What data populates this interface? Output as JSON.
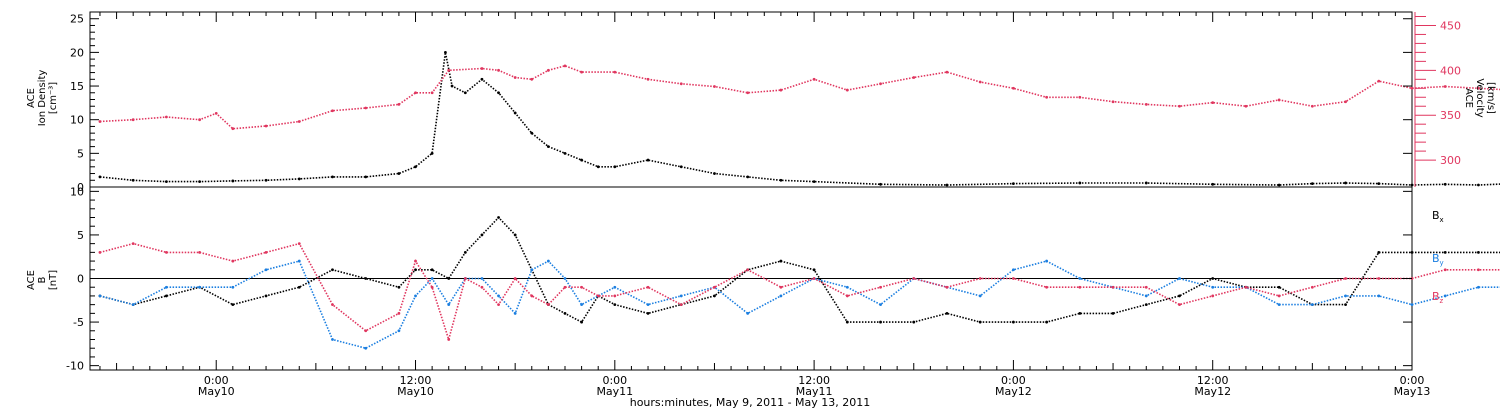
{
  "chart_data": [
    {
      "type": "scatter",
      "panel": "top",
      "left_axis_label": [
        "ACE",
        "Ion Density",
        "[cm⁻³]"
      ],
      "right_axis_label": [
        "ACE",
        "Velocity",
        "[km/s]"
      ],
      "left_ylim": [
        0,
        26
      ],
      "right_ylim": [
        270,
        465
      ],
      "left_ticks": [
        "0",
        "5",
        "10",
        "15",
        "20",
        "25"
      ],
      "right_ticks": [
        "300",
        "350",
        "400",
        "450"
      ],
      "grid": false,
      "colors": {
        "density": "#000000",
        "velocity": "#e0365f"
      },
      "series": [
        {
          "axis": "left",
          "hours": [
            -7,
            -5,
            -3,
            -1,
            1,
            3,
            5,
            7,
            9,
            11,
            12,
            13,
            13.8,
            14.2,
            15,
            16,
            17,
            18,
            19,
            20,
            21,
            22,
            23,
            24,
            26,
            28,
            30,
            32,
            34,
            36,
            40,
            44,
            48,
            52,
            56,
            60,
            64,
            66,
            68,
            70,
            72,
            74,
            76,
            78,
            80,
            82
          ],
          "values": [
            1.5,
            1,
            0.8,
            0.8,
            0.9,
            1,
            1.2,
            1.5,
            1.5,
            2,
            3,
            5,
            20,
            15,
            14,
            16,
            14,
            11,
            8,
            6,
            5,
            4,
            3,
            3,
            4,
            3,
            2,
            1.5,
            1,
            0.8,
            0.4,
            0.3,
            0.5,
            0.6,
            0.6,
            0.4,
            0.3,
            0.5,
            0.6,
            0.5,
            0.3,
            0.4,
            0.3,
            0.5,
            0.5,
            1
          ]
        },
        {
          "axis": "right",
          "hours": [
            -7,
            -5,
            -3,
            -1,
            0,
            1,
            3,
            5,
            7,
            9,
            11,
            12,
            13,
            14,
            16,
            17,
            18,
            19,
            20,
            21,
            22,
            24,
            26,
            28,
            30,
            32,
            34,
            36,
            38,
            40,
            42,
            44,
            46,
            48,
            50,
            52,
            54,
            56,
            58,
            60,
            62,
            64,
            66,
            68,
            70,
            72,
            74,
            76,
            78,
            80,
            82
          ],
          "values": [
            343,
            345,
            348,
            345,
            352,
            335,
            338,
            343,
            355,
            358,
            362,
            375,
            375,
            400,
            402,
            400,
            392,
            390,
            400,
            405,
            398,
            398,
            390,
            385,
            382,
            375,
            378,
            390,
            378,
            385,
            392,
            398,
            387,
            380,
            370,
            370,
            365,
            362,
            360,
            364,
            360,
            367,
            360,
            365,
            388,
            380,
            382,
            380,
            378,
            355,
            350
          ]
        }
      ]
    },
    {
      "type": "scatter",
      "panel": "bottom",
      "left_axis_label": [
        "ACE",
        "B",
        "[nT]"
      ],
      "ylim": [
        -10.5,
        10.5
      ],
      "ticks": [
        "-10",
        "-5",
        "0",
        "5",
        "10"
      ],
      "grid": false,
      "legend": [
        "Bx",
        "By",
        "Bz"
      ],
      "series": [
        {
          "name": "Bx",
          "color": "#000000",
          "hours": [
            -7,
            -5,
            -3,
            -1,
            1,
            3,
            5,
            7,
            9,
            11,
            12,
            13,
            14,
            15,
            16,
            17,
            18,
            19,
            20,
            21,
            22,
            23,
            24,
            26,
            28,
            30,
            32,
            34,
            36,
            38,
            40,
            42,
            44,
            46,
            48,
            50,
            52,
            54,
            56,
            58,
            60,
            62,
            64,
            66,
            68,
            70,
            72,
            74,
            76,
            78,
            80,
            82
          ],
          "values": [
            -2,
            -3,
            -2,
            -1,
            -3,
            -2,
            -1,
            1,
            0,
            -1,
            1,
            1,
            0,
            3,
            5,
            7,
            5,
            1,
            -3,
            -4,
            -5,
            -2,
            -3,
            -4,
            -3,
            -2,
            1,
            2,
            1,
            -5,
            -5,
            -5,
            -4,
            -5,
            -5,
            -5,
            -4,
            -4,
            -3,
            -2,
            0,
            -1,
            -1,
            -3,
            -3,
            3,
            3,
            3,
            3,
            3,
            2,
            0
          ]
        },
        {
          "name": "By",
          "color": "#1a7ee0",
          "hours": [
            -7,
            -5,
            -3,
            -1,
            1,
            3,
            5,
            7,
            9,
            11,
            12,
            13,
            14,
            15,
            16,
            17,
            18,
            19,
            20,
            21,
            22,
            23,
            24,
            26,
            28,
            30,
            32,
            34,
            36,
            38,
            40,
            42,
            44,
            46,
            48,
            50,
            52,
            54,
            56,
            58,
            60,
            62,
            64,
            66,
            68,
            70,
            72,
            74,
            76,
            78,
            80,
            82
          ],
          "values": [
            -2,
            -3,
            -1,
            -1,
            -1,
            1,
            2,
            -7,
            -8,
            -6,
            -2,
            0,
            -3,
            0,
            0,
            -2,
            -4,
            1,
            2,
            0,
            -3,
            -2,
            -1,
            -3,
            -2,
            -1,
            -4,
            -2,
            0,
            -1,
            -3,
            0,
            -1,
            -2,
            1,
            2,
            0,
            -1,
            -2,
            0,
            -1,
            -1,
            -3,
            -3,
            -2,
            -2,
            -3,
            -2,
            -1,
            -1,
            -1,
            1
          ]
        },
        {
          "name": "Bz",
          "color": "#e0365f",
          "hours": [
            -7,
            -5,
            -3,
            -1,
            1,
            3,
            5,
            7,
            9,
            11,
            12,
            13,
            14,
            15,
            16,
            17,
            18,
            19,
            20,
            21,
            22,
            23,
            24,
            26,
            28,
            30,
            32,
            34,
            36,
            38,
            40,
            42,
            44,
            46,
            48,
            50,
            52,
            54,
            56,
            58,
            60,
            62,
            64,
            66,
            68,
            70,
            72,
            74,
            76,
            78,
            80,
            82
          ],
          "values": [
            3,
            4,
            3,
            3,
            2,
            3,
            4,
            -3,
            -6,
            -4,
            2,
            -1,
            -7,
            0,
            -1,
            -3,
            0,
            -2,
            -3,
            -1,
            -1,
            -2,
            -2,
            -1,
            -3,
            -1,
            1,
            -1,
            0,
            -2,
            -1,
            0,
            -1,
            0,
            0,
            -1,
            -1,
            -1,
            -1,
            -3,
            -2,
            -1,
            -2,
            -1,
            0,
            0,
            0,
            1,
            1,
            1,
            2,
            1
          ]
        }
      ]
    }
  ],
  "x_axis": {
    "ticks": [
      {
        "hour": 0,
        "time": "0:00",
        "date": "May10"
      },
      {
        "hour": 12,
        "time": "12:00",
        "date": "May10"
      },
      {
        "hour": 24,
        "time": "0:00",
        "date": "May11"
      },
      {
        "hour": 36,
        "time": "12:00",
        "date": "May11"
      },
      {
        "hour": 48,
        "time": "0:00",
        "date": "May12"
      },
      {
        "hour": 60,
        "time": "12:00",
        "date": "May12"
      },
      {
        "hour": 72,
        "time": "0:00",
        "date": "May13"
      }
    ],
    "title": "hours:minutes, May  9, 2011 - May 13, 2011",
    "range": [
      -7.6,
      72
    ]
  },
  "legend_labels": {
    "bx": "B",
    "bx_sub": "x",
    "by": "B",
    "by_sub": "y",
    "bz": "B",
    "bz_sub": "z"
  }
}
